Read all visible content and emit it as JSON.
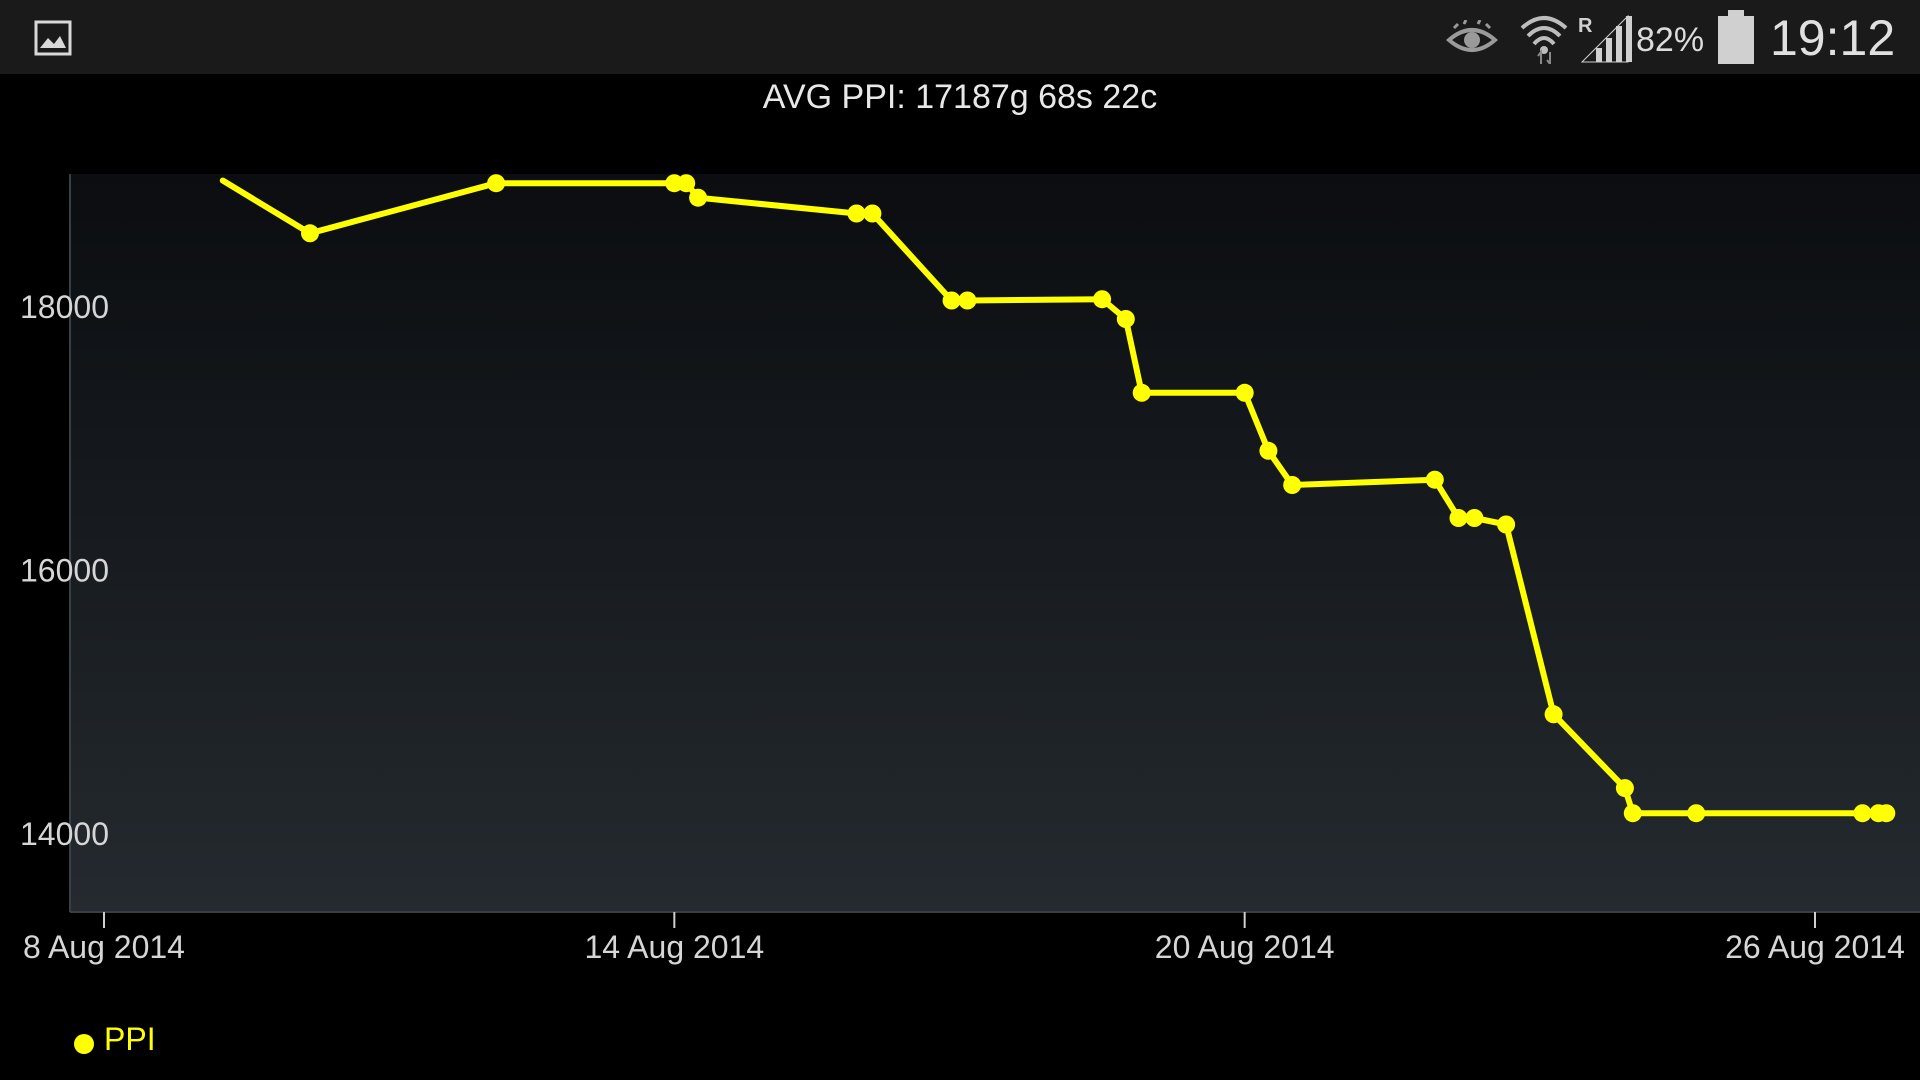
{
  "status_bar": {
    "battery_percent": "82%",
    "time": "19:12",
    "roaming_indicator": "R",
    "icons": [
      "gallery-icon",
      "eye-icon",
      "wifi-icon",
      "signal-icon",
      "battery-icon"
    ]
  },
  "chart_data": {
    "type": "line",
    "title": "AVG PPI: 17187g 68s 22c",
    "xlabel": "",
    "ylabel": "",
    "x_tick_labels": [
      "8 Aug 2014",
      "14 Aug 2014",
      "20 Aug 2014",
      "26 Aug 2014"
    ],
    "y_tick_labels": [
      "18000",
      "16000",
      "14000"
    ],
    "xlim": [
      "2014-08-08",
      "2014-08-26"
    ],
    "ylim": [
      13400,
      19000
    ],
    "grid": false,
    "legend_position": "bottom-left",
    "series": [
      {
        "name": "PPI",
        "color": "#ffff00",
        "points": [
          {
            "x": "2014-08-09 06:00",
            "y": 18950
          },
          {
            "x": "2014-08-10 04:00",
            "y": 18550
          },
          {
            "x": "2014-08-12 03:00",
            "y": 18930
          },
          {
            "x": "2014-08-14 00:00",
            "y": 18930
          },
          {
            "x": "2014-08-14 03:00",
            "y": 18930
          },
          {
            "x": "2014-08-14 06:00",
            "y": 18820
          },
          {
            "x": "2014-08-15 22:00",
            "y": 18700
          },
          {
            "x": "2014-08-16 02:00",
            "y": 18700
          },
          {
            "x": "2014-08-16 22:00",
            "y": 18040
          },
          {
            "x": "2014-08-17 02:00",
            "y": 18040
          },
          {
            "x": "2014-08-18 12:00",
            "y": 18050
          },
          {
            "x": "2014-08-18 18:00",
            "y": 17900
          },
          {
            "x": "2014-08-18 22:00",
            "y": 17340
          },
          {
            "x": "2014-08-20 00:00",
            "y": 17340
          },
          {
            "x": "2014-08-20 06:00",
            "y": 16900
          },
          {
            "x": "2014-08-20 12:00",
            "y": 16640
          },
          {
            "x": "2014-08-22 00:00",
            "y": 16680
          },
          {
            "x": "2014-08-22 06:00",
            "y": 16390
          },
          {
            "x": "2014-08-22 10:00",
            "y": 16390
          },
          {
            "x": "2014-08-22 18:00",
            "y": 16340
          },
          {
            "x": "2014-08-23 06:00",
            "y": 14900
          },
          {
            "x": "2014-08-24 00:00",
            "y": 14340
          },
          {
            "x": "2014-08-24 02:00",
            "y": 14150
          },
          {
            "x": "2014-08-24 18:00",
            "y": 14150
          },
          {
            "x": "2014-08-26 12:00",
            "y": 14150
          },
          {
            "x": "2014-08-26 16:00",
            "y": 14150
          },
          {
            "x": "2014-08-26 18:00",
            "y": 14150
          }
        ]
      }
    ]
  }
}
